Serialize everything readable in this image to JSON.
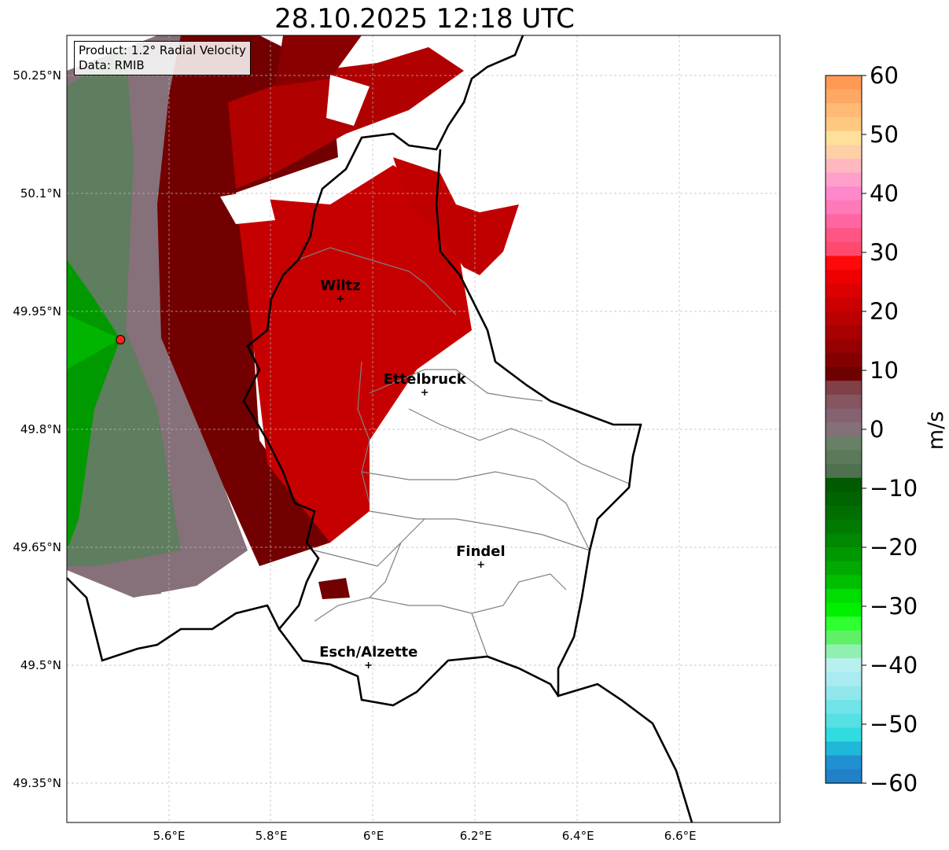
{
  "title": "28.10.2025 12:18 UTC",
  "info": {
    "product": "Product: 1.2° Radial Velocity",
    "source": "Data: RMIB"
  },
  "axes": {
    "lon_range": [
      5.4,
      6.795
    ],
    "lat_range": [
      49.3,
      50.301
    ],
    "lat_ticks": [
      {
        "value": 50.25,
        "label": "50.25°N"
      },
      {
        "value": 50.1,
        "label": "50.1°N"
      },
      {
        "value": 49.95,
        "label": "49.95°N"
      },
      {
        "value": 49.8,
        "label": "49.8°N"
      },
      {
        "value": 49.65,
        "label": "49.65°N"
      },
      {
        "value": 49.5,
        "label": "49.5°N"
      },
      {
        "value": 49.35,
        "label": "49.35°N"
      }
    ],
    "lon_ticks": [
      {
        "value": 5.6,
        "label": "5.6°E"
      },
      {
        "value": 5.8,
        "label": "5.8°E"
      },
      {
        "value": 6.0,
        "label": "6°E"
      },
      {
        "value": 6.2,
        "label": "6.2°E"
      },
      {
        "value": 6.4,
        "label": "6.4°E"
      },
      {
        "value": 6.6,
        "label": "6.6°E"
      }
    ]
  },
  "radar_site": {
    "lon": 5.505,
    "lat": 49.914,
    "color": "#ff2020"
  },
  "cities": [
    {
      "name": "Wiltz",
      "lon": 5.935,
      "lat": 49.966
    },
    {
      "name": "Ettelbruck",
      "lon": 6.1,
      "lat": 49.847
    },
    {
      "name": "Findel",
      "lon": 6.21,
      "lat": 49.628
    },
    {
      "name": "Esch/Alzette",
      "lon": 5.99,
      "lat": 49.5
    }
  ],
  "colorbar": {
    "unit": "m/s",
    "range": [
      -60,
      60
    ],
    "ticks": [
      {
        "value": 60,
        "label": "60"
      },
      {
        "value": 50,
        "label": "50"
      },
      {
        "value": 40,
        "label": "40"
      },
      {
        "value": 30,
        "label": "30"
      },
      {
        "value": 20,
        "label": "20"
      },
      {
        "value": 10,
        "label": "10"
      },
      {
        "value": 0,
        "label": "0"
      },
      {
        "value": -10,
        "label": "−10"
      },
      {
        "value": -20,
        "label": "−20"
      },
      {
        "value": -30,
        "label": "−30"
      },
      {
        "value": -40,
        "label": "−40"
      },
      {
        "value": -50,
        "label": "−50"
      },
      {
        "value": -60,
        "label": "−60"
      }
    ],
    "bands_top_to_bottom": [
      "#ff9a55",
      "#ffa865",
      "#ffbb75",
      "#ffc880",
      "#ffe09a",
      "#ffd0a8",
      "#ffb8c0",
      "#ffa0cc",
      "#ff88cc",
      "#ff78b8",
      "#ff65a0",
      "#ff5585",
      "#ff4a70",
      "#ff0a0a",
      "#ee0000",
      "#dd0000",
      "#cc0000",
      "#bb0000",
      "#a80000",
      "#960000",
      "#840000",
      "#6e0000",
      "#804048",
      "#855560",
      "#856272",
      "#847078",
      "#688068",
      "#5a7a5a",
      "#4f714f",
      "#005a00",
      "#006400",
      "#006e00",
      "#007a00",
      "#008800",
      "#009800",
      "#00aa00",
      "#00bf00",
      "#00dd00",
      "#00f000",
      "#30ff30",
      "#60f068",
      "#90f0b0",
      "#b8f0f0",
      "#a8ecf0",
      "#90e8ec",
      "#70e4e8",
      "#55e0e4",
      "#30dce0",
      "#20b8d8",
      "#2090d0",
      "#2080c8"
    ]
  },
  "colors": {
    "dark_red": "#720000",
    "red": "#cc0000",
    "gray": "#86707a",
    "gray_green": "#5f7d5f",
    "green": "#009a00",
    "border": "#000000",
    "district": "#808080"
  }
}
